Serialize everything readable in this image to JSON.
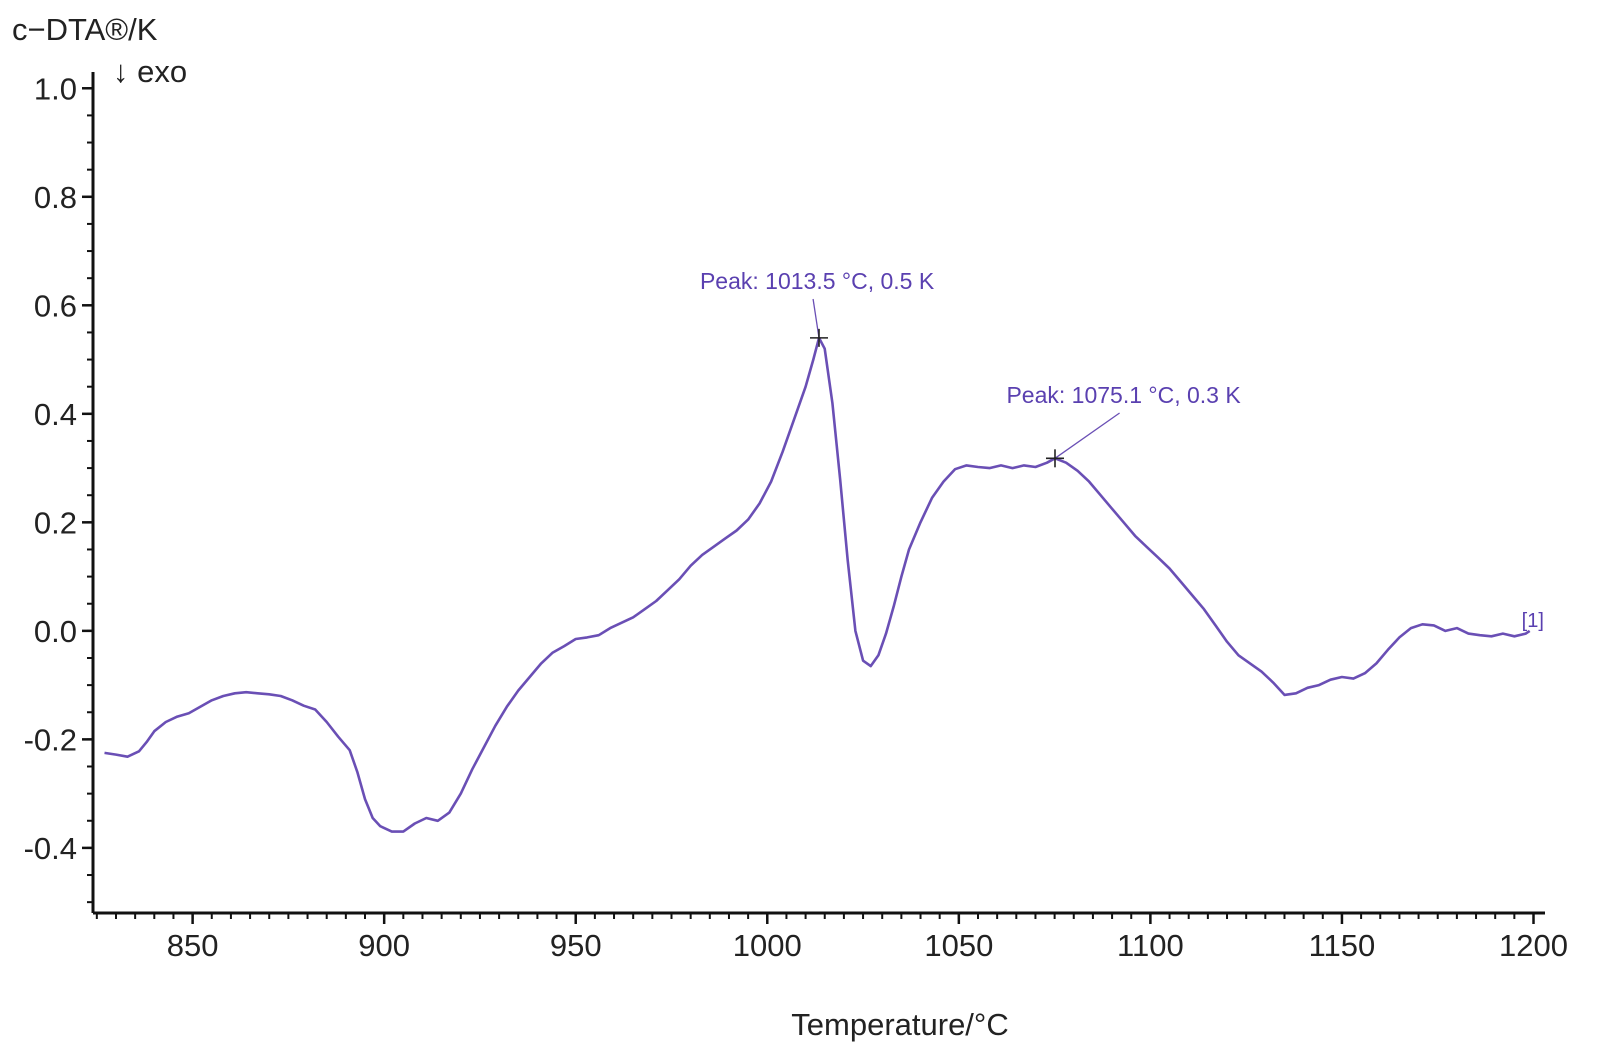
{
  "chart_data": {
    "type": "line",
    "ylabel": "c−DTA®/K",
    "ylabel_note": "↓ exo",
    "xlabel": "Temperature/°C",
    "xlim": [
      824,
      1203
    ],
    "ylim": [
      -0.52,
      1.03
    ],
    "x_ticks": [
      850,
      900,
      950,
      1000,
      1050,
      1100,
      1150,
      1200
    ],
    "y_ticks": [
      1.0,
      0.8,
      0.6,
      0.4,
      0.2,
      0.0,
      -0.2,
      -0.4
    ],
    "y_tick_labels": [
      "1.0",
      "0.8",
      "0.6",
      "0.4",
      "0.2",
      "0.0",
      "-0.2",
      "-0.4"
    ],
    "x_minor_step": 5,
    "y_minor_step": 0.05,
    "grid": false,
    "line_color": "#6a4fb5",
    "series": [
      {
        "label": "[1]",
        "points": [
          [
            827,
            -0.225
          ],
          [
            830,
            -0.228
          ],
          [
            833,
            -0.232
          ],
          [
            836,
            -0.222
          ],
          [
            838,
            -0.205
          ],
          [
            840,
            -0.185
          ],
          [
            843,
            -0.168
          ],
          [
            846,
            -0.158
          ],
          [
            849,
            -0.152
          ],
          [
            852,
            -0.14
          ],
          [
            855,
            -0.128
          ],
          [
            858,
            -0.12
          ],
          [
            861,
            -0.115
          ],
          [
            864,
            -0.113
          ],
          [
            867,
            -0.115
          ],
          [
            870,
            -0.117
          ],
          [
            873,
            -0.12
          ],
          [
            876,
            -0.128
          ],
          [
            879,
            -0.138
          ],
          [
            882,
            -0.145
          ],
          [
            885,
            -0.168
          ],
          [
            888,
            -0.195
          ],
          [
            891,
            -0.22
          ],
          [
            893,
            -0.26
          ],
          [
            895,
            -0.31
          ],
          [
            897,
            -0.345
          ],
          [
            899,
            -0.36
          ],
          [
            902,
            -0.37
          ],
          [
            905,
            -0.37
          ],
          [
            908,
            -0.355
          ],
          [
            911,
            -0.345
          ],
          [
            914,
            -0.35
          ],
          [
            917,
            -0.335
          ],
          [
            920,
            -0.3
          ],
          [
            923,
            -0.255
          ],
          [
            926,
            -0.215
          ],
          [
            929,
            -0.175
          ],
          [
            932,
            -0.14
          ],
          [
            935,
            -0.11
          ],
          [
            938,
            -0.085
          ],
          [
            941,
            -0.06
          ],
          [
            944,
            -0.04
          ],
          [
            947,
            -0.028
          ],
          [
            950,
            -0.015
          ],
          [
            953,
            -0.012
          ],
          [
            956,
            -0.008
          ],
          [
            959,
            0.005
          ],
          [
            962,
            0.015
          ],
          [
            965,
            0.025
          ],
          [
            968,
            0.04
          ],
          [
            971,
            0.055
          ],
          [
            974,
            0.075
          ],
          [
            977,
            0.095
          ],
          [
            980,
            0.12
          ],
          [
            983,
            0.14
          ],
          [
            986,
            0.155
          ],
          [
            989,
            0.17
          ],
          [
            992,
            0.185
          ],
          [
            995,
            0.205
          ],
          [
            998,
            0.235
          ],
          [
            1001,
            0.275
          ],
          [
            1004,
            0.33
          ],
          [
            1007,
            0.39
          ],
          [
            1010,
            0.45
          ],
          [
            1012,
            0.5
          ],
          [
            1013.5,
            0.54
          ],
          [
            1015,
            0.52
          ],
          [
            1017,
            0.42
          ],
          [
            1019,
            0.28
          ],
          [
            1021,
            0.13
          ],
          [
            1023,
            0.0
          ],
          [
            1025,
            -0.055
          ],
          [
            1027,
            -0.065
          ],
          [
            1029,
            -0.045
          ],
          [
            1031,
            -0.005
          ],
          [
            1033,
            0.045
          ],
          [
            1035,
            0.1
          ],
          [
            1037,
            0.15
          ],
          [
            1040,
            0.2
          ],
          [
            1043,
            0.245
          ],
          [
            1046,
            0.275
          ],
          [
            1049,
            0.298
          ],
          [
            1052,
            0.305
          ],
          [
            1055,
            0.302
          ],
          [
            1058,
            0.3
          ],
          [
            1061,
            0.305
          ],
          [
            1064,
            0.3
          ],
          [
            1067,
            0.305
          ],
          [
            1070,
            0.302
          ],
          [
            1073,
            0.31
          ],
          [
            1075.1,
            0.318
          ],
          [
            1078,
            0.31
          ],
          [
            1081,
            0.295
          ],
          [
            1084,
            0.275
          ],
          [
            1087,
            0.25
          ],
          [
            1090,
            0.225
          ],
          [
            1093,
            0.2
          ],
          [
            1096,
            0.175
          ],
          [
            1099,
            0.155
          ],
          [
            1102,
            0.135
          ],
          [
            1105,
            0.115
          ],
          [
            1108,
            0.09
          ],
          [
            1111,
            0.065
          ],
          [
            1114,
            0.04
          ],
          [
            1117,
            0.01
          ],
          [
            1120,
            -0.02
          ],
          [
            1123,
            -0.045
          ],
          [
            1126,
            -0.06
          ],
          [
            1129,
            -0.075
          ],
          [
            1132,
            -0.095
          ],
          [
            1135,
            -0.118
          ],
          [
            1138,
            -0.115
          ],
          [
            1141,
            -0.105
          ],
          [
            1144,
            -0.1
          ],
          [
            1147,
            -0.09
          ],
          [
            1150,
            -0.085
          ],
          [
            1153,
            -0.088
          ],
          [
            1156,
            -0.078
          ],
          [
            1159,
            -0.06
          ],
          [
            1162,
            -0.035
          ],
          [
            1165,
            -0.012
          ],
          [
            1168,
            0.005
          ],
          [
            1171,
            0.012
          ],
          [
            1174,
            0.01
          ],
          [
            1177,
            0.0
          ],
          [
            1180,
            0.005
          ],
          [
            1183,
            -0.005
          ],
          [
            1186,
            -0.008
          ],
          [
            1189,
            -0.01
          ],
          [
            1192,
            -0.005
          ],
          [
            1195,
            -0.01
          ],
          [
            1198,
            -0.005
          ],
          [
            1199,
            0.0
          ]
        ]
      }
    ],
    "annotations": [
      {
        "text": "Peak: 1013.5 °C, 0.5 K",
        "x": 1013.5,
        "y": 0.54,
        "text_x": 1013,
        "text_y": 0.63
      },
      {
        "text": "Peak: 1075.1 °C, 0.3 K",
        "x": 1075.1,
        "y": 0.318,
        "text_x": 1093,
        "text_y": 0.42
      }
    ]
  }
}
